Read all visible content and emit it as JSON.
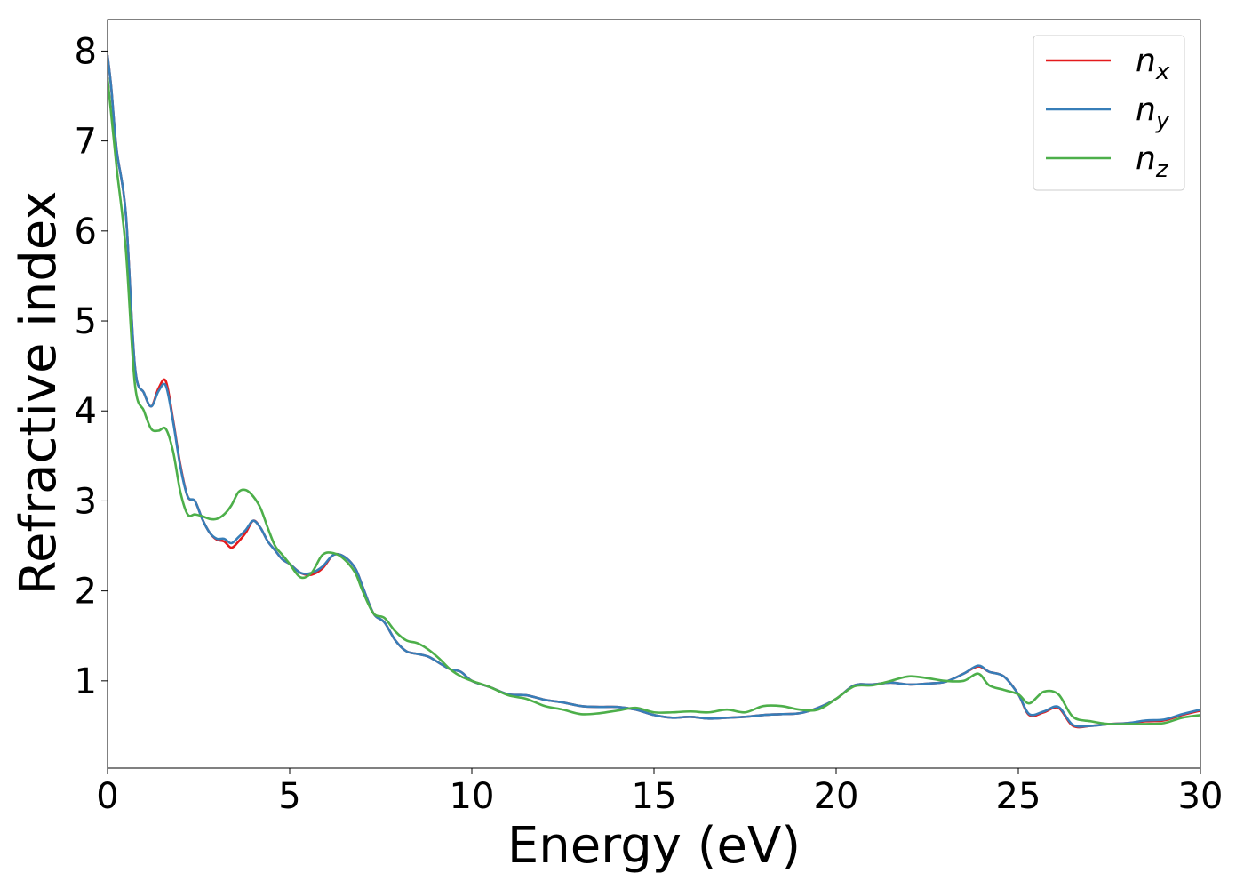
{
  "chart_data": {
    "type": "line",
    "xlabel": "Energy (eV)",
    "ylabel": "Refractive index",
    "xlim": [
      0,
      30
    ],
    "ylim": [
      0.03,
      8.35
    ],
    "xticks": [
      0,
      5,
      10,
      15,
      20,
      25,
      30
    ],
    "yticks": [
      1,
      2,
      3,
      4,
      5,
      6,
      7,
      8
    ],
    "grid": false,
    "legend_position": "top-right",
    "series": [
      {
        "name": "n",
        "subscript": "x",
        "color": "#e41a1c",
        "x": [
          0,
          0.1,
          0.25,
          0.5,
          0.75,
          1.0,
          1.2,
          1.4,
          1.6,
          1.8,
          2.0,
          2.2,
          2.4,
          2.6,
          2.8,
          3.0,
          3.2,
          3.4,
          3.6,
          3.8,
          4.0,
          4.2,
          4.4,
          4.6,
          4.8,
          5.0,
          5.3,
          5.6,
          5.9,
          6.2,
          6.5,
          6.8,
          7.0,
          7.3,
          7.6,
          7.9,
          8.2,
          8.5,
          8.8,
          9.1,
          9.4,
          9.7,
          10.0,
          10.5,
          11.0,
          11.5,
          12.0,
          12.5,
          13.0,
          13.5,
          14.0,
          14.5,
          15.0,
          15.5,
          16.0,
          16.5,
          17.0,
          17.5,
          18.0,
          18.5,
          19.0,
          19.5,
          20.0,
          20.5,
          21.0,
          21.5,
          22.0,
          22.5,
          23.0,
          23.5,
          23.9,
          24.2,
          24.6,
          25.0,
          25.3,
          25.7,
          26.1,
          26.5,
          27.0,
          27.5,
          28.0,
          28.5,
          29.0,
          29.5,
          30.0
        ],
        "values": [
          7.95,
          7.6,
          6.9,
          6.2,
          4.5,
          4.2,
          4.05,
          4.25,
          4.33,
          3.9,
          3.4,
          3.05,
          3.0,
          2.8,
          2.65,
          2.57,
          2.55,
          2.48,
          2.55,
          2.65,
          2.78,
          2.7,
          2.55,
          2.45,
          2.35,
          2.3,
          2.2,
          2.18,
          2.25,
          2.4,
          2.38,
          2.25,
          2.05,
          1.75,
          1.65,
          1.45,
          1.33,
          1.3,
          1.27,
          1.2,
          1.13,
          1.1,
          1.0,
          0.93,
          0.85,
          0.84,
          0.79,
          0.76,
          0.72,
          0.71,
          0.71,
          0.68,
          0.62,
          0.59,
          0.6,
          0.58,
          0.59,
          0.6,
          0.62,
          0.63,
          0.64,
          0.7,
          0.8,
          0.95,
          0.96,
          0.98,
          0.96,
          0.97,
          0.99,
          1.08,
          1.16,
          1.1,
          1.05,
          0.85,
          0.62,
          0.65,
          0.7,
          0.5,
          0.5,
          0.52,
          0.53,
          0.55,
          0.56,
          0.62,
          0.67
        ]
      },
      {
        "name": "n",
        "subscript": "y",
        "color": "#377eb8",
        "x": [
          0,
          0.1,
          0.25,
          0.5,
          0.75,
          1.0,
          1.2,
          1.4,
          1.6,
          1.8,
          2.0,
          2.2,
          2.4,
          2.6,
          2.8,
          3.0,
          3.2,
          3.4,
          3.6,
          3.8,
          4.0,
          4.2,
          4.4,
          4.6,
          4.8,
          5.0,
          5.3,
          5.6,
          5.9,
          6.2,
          6.5,
          6.8,
          7.0,
          7.3,
          7.6,
          7.9,
          8.2,
          8.5,
          8.8,
          9.1,
          9.4,
          9.7,
          10.0,
          10.5,
          11.0,
          11.5,
          12.0,
          12.5,
          13.0,
          13.5,
          14.0,
          14.5,
          15.0,
          15.5,
          16.0,
          16.5,
          17.0,
          17.5,
          18.0,
          18.5,
          19.0,
          19.5,
          20.0,
          20.5,
          21.0,
          21.5,
          22.0,
          22.5,
          23.0,
          23.5,
          23.9,
          24.2,
          24.6,
          25.0,
          25.3,
          25.7,
          26.1,
          26.5,
          27.0,
          27.5,
          28.0,
          28.5,
          29.0,
          29.5,
          30.0
        ],
        "values": [
          7.95,
          7.6,
          6.9,
          6.2,
          4.5,
          4.2,
          4.05,
          4.22,
          4.28,
          3.88,
          3.38,
          3.05,
          3.0,
          2.8,
          2.65,
          2.58,
          2.58,
          2.53,
          2.6,
          2.68,
          2.78,
          2.7,
          2.55,
          2.45,
          2.35,
          2.3,
          2.2,
          2.2,
          2.27,
          2.4,
          2.38,
          2.25,
          2.05,
          1.75,
          1.65,
          1.45,
          1.33,
          1.3,
          1.27,
          1.2,
          1.13,
          1.1,
          1.0,
          0.93,
          0.85,
          0.84,
          0.79,
          0.76,
          0.72,
          0.71,
          0.71,
          0.68,
          0.62,
          0.59,
          0.6,
          0.58,
          0.59,
          0.6,
          0.62,
          0.63,
          0.64,
          0.7,
          0.8,
          0.95,
          0.96,
          0.98,
          0.96,
          0.97,
          0.99,
          1.08,
          1.17,
          1.1,
          1.05,
          0.85,
          0.63,
          0.66,
          0.71,
          0.51,
          0.5,
          0.52,
          0.53,
          0.56,
          0.57,
          0.63,
          0.68
        ]
      },
      {
        "name": "n",
        "subscript": "z",
        "color": "#4daf4a",
        "x": [
          0,
          0.1,
          0.25,
          0.5,
          0.75,
          1.0,
          1.2,
          1.4,
          1.6,
          1.8,
          2.0,
          2.2,
          2.4,
          2.6,
          2.8,
          3.0,
          3.2,
          3.4,
          3.6,
          3.8,
          4.0,
          4.2,
          4.4,
          4.6,
          4.8,
          5.0,
          5.3,
          5.6,
          5.9,
          6.2,
          6.5,
          6.8,
          7.0,
          7.3,
          7.6,
          7.9,
          8.2,
          8.5,
          8.8,
          9.1,
          9.4,
          9.7,
          10.0,
          10.5,
          11.0,
          11.5,
          12.0,
          12.5,
          13.0,
          13.5,
          14.0,
          14.5,
          15.0,
          15.5,
          16.0,
          16.5,
          17.0,
          17.5,
          18.0,
          18.5,
          19.0,
          19.5,
          20.0,
          20.5,
          21.0,
          21.5,
          22.0,
          22.5,
          23.0,
          23.5,
          23.9,
          24.2,
          24.6,
          25.0,
          25.3,
          25.7,
          26.1,
          26.5,
          27.0,
          27.5,
          28.0,
          28.5,
          29.0,
          29.5,
          30.0
        ],
        "values": [
          7.7,
          7.3,
          6.7,
          5.8,
          4.3,
          4.0,
          3.8,
          3.78,
          3.8,
          3.55,
          3.1,
          2.85,
          2.85,
          2.83,
          2.8,
          2.8,
          2.85,
          2.95,
          3.1,
          3.12,
          3.05,
          2.92,
          2.7,
          2.5,
          2.4,
          2.3,
          2.15,
          2.2,
          2.4,
          2.42,
          2.35,
          2.2,
          2.0,
          1.75,
          1.7,
          1.55,
          1.45,
          1.42,
          1.35,
          1.25,
          1.13,
          1.05,
          1.0,
          0.93,
          0.84,
          0.8,
          0.72,
          0.68,
          0.63,
          0.64,
          0.67,
          0.7,
          0.65,
          0.65,
          0.66,
          0.65,
          0.68,
          0.65,
          0.72,
          0.72,
          0.68,
          0.68,
          0.8,
          0.94,
          0.95,
          1.0,
          1.05,
          1.03,
          1.0,
          1.0,
          1.08,
          0.95,
          0.9,
          0.85,
          0.75,
          0.88,
          0.85,
          0.6,
          0.55,
          0.52,
          0.52,
          0.52,
          0.53,
          0.59,
          0.62
        ]
      }
    ]
  }
}
